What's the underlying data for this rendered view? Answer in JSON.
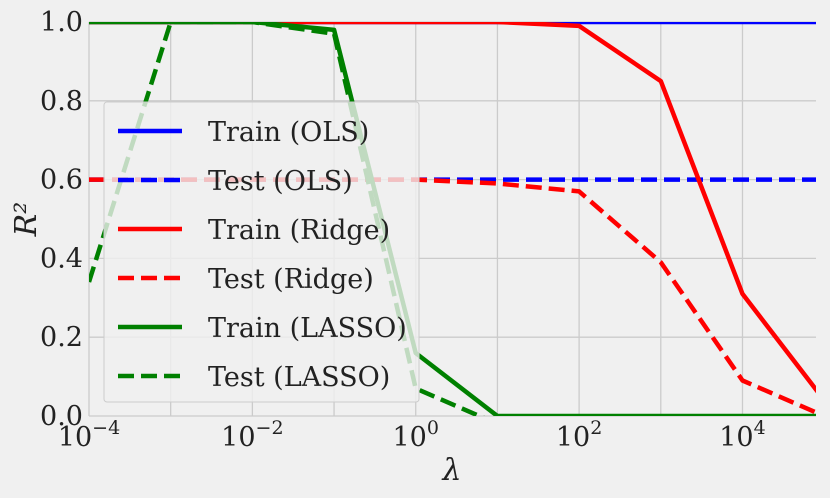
{
  "chart_data": {
    "type": "line",
    "xlabel": "λ",
    "ylabel": "R²",
    "xscale": "log",
    "xlim_exponent": [
      -4,
      4.9
    ],
    "ylim": [
      0,
      1
    ],
    "x_ticks": [
      {
        "base": "10",
        "exp": "−4",
        "value": 0.0001
      },
      {
        "base": "10",
        "exp": "−2",
        "value": 0.01
      },
      {
        "base": "10",
        "exp": "0",
        "value": 1
      },
      {
        "base": "10",
        "exp": "2",
        "value": 100
      },
      {
        "base": "10",
        "exp": "4",
        "value": 10000
      }
    ],
    "y_ticks": [
      "0.0",
      "0.2",
      "0.4",
      "0.6",
      "0.8",
      "1.0"
    ],
    "grid": true,
    "legend_position": "center-left",
    "x": [
      0.0001,
      0.001,
      0.01,
      0.1,
      1,
      10,
      100,
      1000,
      10000,
      100000
    ],
    "series": [
      {
        "name": "Train (OLS)",
        "color": "#0000ff",
        "dash": "solid",
        "values": [
          1.0,
          1.0,
          1.0,
          1.0,
          1.0,
          1.0,
          1.0,
          1.0,
          1.0,
          1.0
        ]
      },
      {
        "name": "Test (OLS)",
        "color": "#0000ff",
        "dash": "dashed",
        "values": [
          0.6,
          0.6,
          0.6,
          0.6,
          0.6,
          0.6,
          0.6,
          0.6,
          0.6,
          0.6
        ]
      },
      {
        "name": "Train (Ridge)",
        "color": "#ff0000",
        "dash": "solid",
        "values": [
          1.0,
          1.0,
          1.0,
          1.0,
          1.0,
          1.0,
          0.99,
          0.85,
          0.31,
          0.04
        ]
      },
      {
        "name": "Test (Ridge)",
        "color": "#ff0000",
        "dash": "dashed",
        "values": [
          0.6,
          0.6,
          0.6,
          0.6,
          0.6,
          0.59,
          0.57,
          0.39,
          0.09,
          0.0
        ]
      },
      {
        "name": "Train (LASSO)",
        "color": "#008000",
        "dash": "solid",
        "values": [
          1.0,
          1.0,
          1.0,
          0.98,
          0.16,
          0.0,
          0.0,
          0.0,
          0.0,
          0.0
        ]
      },
      {
        "name": "Test (LASSO)",
        "color": "#008000",
        "dash": "dashed",
        "values": [
          0.34,
          1.0,
          1.0,
          0.97,
          0.07,
          -0.02,
          -0.02,
          -0.02,
          -0.02,
          -0.02
        ]
      }
    ]
  }
}
